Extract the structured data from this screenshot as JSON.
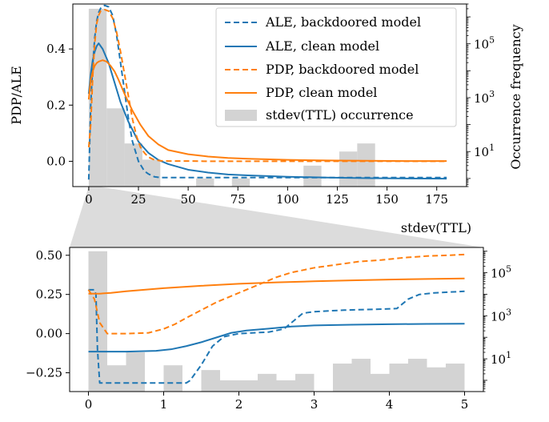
{
  "chart_data": [
    {
      "type": "line",
      "panel": "top",
      "xlabel": "stdev(TTL)",
      "ylabel": "PDP/ALE",
      "ylabel_right": "Occurrence frequency",
      "xlim": [
        -8,
        190
      ],
      "ylim": [
        -0.09,
        0.56
      ],
      "yscale_right": "log",
      "ylim_right": [
        0.5,
        3000000
      ],
      "xticks": [
        0,
        25,
        50,
        75,
        100,
        125,
        150,
        175
      ],
      "yticks": [
        0.0,
        0.2,
        0.4
      ],
      "yticks_right": [
        {
          "value": 10,
          "label_base": "10",
          "label_exp": "1"
        },
        {
          "value": 1000,
          "label_base": "10",
          "label_exp": "3"
        },
        {
          "value": 100000,
          "label_base": "10",
          "label_exp": "5"
        }
      ],
      "grid": false,
      "legend_position": "top-right",
      "series": [
        {
          "name": "ALE, backdoored model",
          "color": "#1f77b4",
          "dash": "dashed",
          "x": [
            0,
            1,
            2,
            3,
            4,
            5,
            6,
            8,
            10,
            12,
            14,
            16,
            18,
            20,
            22,
            25,
            28,
            30,
            33,
            36,
            40,
            50,
            60,
            80,
            100,
            120,
            140,
            160,
            180
          ],
          "y": [
            -0.065,
            0.2,
            0.34,
            0.44,
            0.5,
            0.53,
            0.545,
            0.555,
            0.55,
            0.52,
            0.45,
            0.35,
            0.25,
            0.15,
            0.07,
            0.0,
            -0.035,
            -0.045,
            -0.055,
            -0.058,
            -0.058,
            -0.058,
            -0.058,
            -0.058,
            -0.058,
            -0.058,
            -0.058,
            -0.058,
            -0.058
          ]
        },
        {
          "name": "ALE, clean model",
          "color": "#1f77b4",
          "dash": "solid",
          "x": [
            0,
            1,
            2,
            3,
            4,
            5,
            7,
            10,
            13,
            16,
            20,
            25,
            30,
            35,
            40,
            50,
            60,
            70,
            80,
            100,
            120,
            140,
            160,
            180
          ],
          "y": [
            0.24,
            0.31,
            0.36,
            0.39,
            0.41,
            0.42,
            0.4,
            0.35,
            0.28,
            0.21,
            0.14,
            0.07,
            0.03,
            0.005,
            -0.01,
            -0.03,
            -0.04,
            -0.047,
            -0.05,
            -0.055,
            -0.058,
            -0.06,
            -0.061,
            -0.062
          ]
        },
        {
          "name": "PDP, backdoored model",
          "color": "#ff7f0e",
          "dash": "dashed",
          "x": [
            0,
            1,
            2,
            3,
            4,
            5,
            6,
            8,
            10,
            12,
            14,
            16,
            18,
            20,
            22,
            24,
            26,
            28,
            30,
            33,
            36,
            40,
            50,
            60,
            80,
            100,
            120,
            140,
            160,
            180
          ],
          "y": [
            0.05,
            0.13,
            0.3,
            0.42,
            0.49,
            0.52,
            0.535,
            0.54,
            0.535,
            0.51,
            0.46,
            0.39,
            0.31,
            0.23,
            0.15,
            0.09,
            0.05,
            0.03,
            0.015,
            0.005,
            0.002,
            0.001,
            0.001,
            0.0,
            0.0,
            0.0,
            0.0,
            0.0,
            0.0,
            0.0
          ]
        },
        {
          "name": "PDP, clean model",
          "color": "#ff7f0e",
          "dash": "solid",
          "x": [
            0,
            1,
            2,
            3,
            4,
            5,
            7,
            9,
            11,
            13,
            15,
            18,
            22,
            26,
            30,
            35,
            40,
            50,
            60,
            70,
            80,
            100,
            120,
            140,
            160,
            180
          ],
          "y": [
            0.22,
            0.29,
            0.32,
            0.34,
            0.35,
            0.355,
            0.36,
            0.355,
            0.34,
            0.32,
            0.29,
            0.24,
            0.18,
            0.13,
            0.09,
            0.06,
            0.04,
            0.025,
            0.017,
            0.012,
            0.009,
            0.005,
            0.003,
            0.002,
            0.001,
            0.001
          ]
        }
      ],
      "histogram": {
        "name": "stdev(TTL) occurrence",
        "color": "#d3d3d3",
        "bin_width": 9,
        "bins": [
          {
            "x": 0,
            "count": 2000000
          },
          {
            "x": 9,
            "count": 400
          },
          {
            "x": 18,
            "count": 20
          },
          {
            "x": 27,
            "count": 5
          },
          {
            "x": 54,
            "count": 1
          },
          {
            "x": 72,
            "count": 1
          },
          {
            "x": 108,
            "count": 3
          },
          {
            "x": 126,
            "count": 10
          },
          {
            "x": 135,
            "count": 20
          }
        ]
      }
    },
    {
      "type": "line",
      "panel": "bottom",
      "xlim": [
        -0.25,
        5.25
      ],
      "ylim": [
        -0.37,
        0.55
      ],
      "yscale_right": "log",
      "ylim_right": [
        0.3,
        1500000
      ],
      "xticks": [
        0,
        1,
        2,
        3,
        4,
        5
      ],
      "yticks": [
        -0.25,
        0.0,
        0.25,
        0.5
      ],
      "yticks_right": [
        {
          "value": 10,
          "label_base": "10",
          "label_exp": "1"
        },
        {
          "value": 1000,
          "label_base": "10",
          "label_exp": "3"
        },
        {
          "value": 100000,
          "label_base": "10",
          "label_exp": "5"
        }
      ],
      "grid": false,
      "series": [
        {
          "name": "ALE, backdoored model",
          "color": "#1f77b4",
          "dash": "dashed",
          "x": [
            0,
            0.08,
            0.1,
            0.12,
            0.15,
            1.3,
            1.35,
            1.5,
            1.65,
            1.8,
            2.0,
            2.4,
            2.6,
            2.75,
            2.85,
            3.0,
            3.4,
            3.8,
            4.1,
            4.25,
            4.4,
            4.6,
            5.0
          ],
          "y": [
            0.28,
            0.28,
            0.25,
            -0.1,
            -0.315,
            -0.315,
            -0.3,
            -0.2,
            -0.08,
            -0.02,
            0.0,
            0.01,
            0.03,
            0.09,
            0.13,
            0.14,
            0.15,
            0.155,
            0.16,
            0.22,
            0.25,
            0.26,
            0.27
          ]
        },
        {
          "name": "ALE, clean model",
          "color": "#1f77b4",
          "dash": "solid",
          "x": [
            0,
            0.5,
            0.9,
            1.1,
            1.3,
            1.5,
            1.7,
            1.9,
            2.1,
            2.4,
            2.7,
            3.0,
            3.5,
            4.0,
            4.5,
            5.0
          ],
          "y": [
            -0.115,
            -0.115,
            -0.11,
            -0.1,
            -0.08,
            -0.055,
            -0.025,
            0.005,
            0.02,
            0.032,
            0.045,
            0.052,
            0.057,
            0.06,
            0.062,
            0.063
          ]
        },
        {
          "name": "PDP, backdoored model",
          "color": "#ff7f0e",
          "dash": "dashed",
          "x": [
            0,
            0.08,
            0.15,
            0.25,
            0.5,
            0.8,
            1.0,
            1.15,
            1.3,
            1.5,
            1.7,
            1.9,
            2.1,
            2.3,
            2.5,
            2.7,
            3.0,
            3.3,
            3.6,
            3.9,
            4.2,
            4.5,
            4.8,
            5.0
          ],
          "y": [
            0.28,
            0.22,
            0.07,
            0.0,
            0.0,
            0.005,
            0.03,
            0.06,
            0.1,
            0.15,
            0.2,
            0.24,
            0.28,
            0.32,
            0.36,
            0.39,
            0.42,
            0.44,
            0.46,
            0.47,
            0.485,
            0.495,
            0.5,
            0.505
          ]
        },
        {
          "name": "PDP, clean model",
          "color": "#ff7f0e",
          "dash": "solid",
          "x": [
            0,
            0.15,
            0.3,
            0.5,
            1.0,
            1.5,
            2.0,
            2.5,
            3.0,
            3.5,
            4.0,
            4.5,
            5.0
          ],
          "y": [
            0.255,
            0.255,
            0.26,
            0.27,
            0.29,
            0.305,
            0.318,
            0.327,
            0.334,
            0.34,
            0.345,
            0.349,
            0.352
          ]
        }
      ],
      "histogram": {
        "name": "stdev(TTL) occurrence",
        "color": "#d3d3d3",
        "bin_width": 0.25,
        "bins": [
          {
            "x": 0,
            "count": 1000000
          },
          {
            "x": 0.25,
            "count": 5
          },
          {
            "x": 0.5,
            "count": 20
          },
          {
            "x": 1.0,
            "count": 5
          },
          {
            "x": 1.5,
            "count": 3
          },
          {
            "x": 1.75,
            "count": 1
          },
          {
            "x": 2.0,
            "count": 1
          },
          {
            "x": 2.25,
            "count": 2
          },
          {
            "x": 2.5,
            "count": 1
          },
          {
            "x": 2.75,
            "count": 2
          },
          {
            "x": 3.25,
            "count": 6
          },
          {
            "x": 3.5,
            "count": 10
          },
          {
            "x": 3.75,
            "count": 2
          },
          {
            "x": 4.0,
            "count": 6
          },
          {
            "x": 4.25,
            "count": 10
          },
          {
            "x": 4.5,
            "count": 4
          },
          {
            "x": 4.75,
            "count": 6
          }
        ]
      }
    }
  ]
}
